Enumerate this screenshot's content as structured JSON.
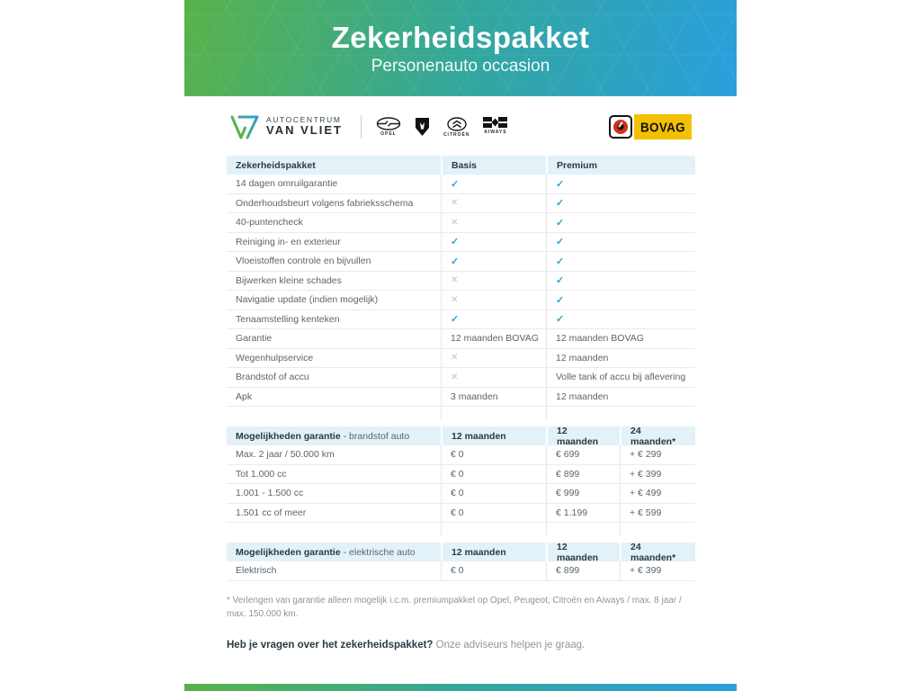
{
  "hero": {
    "title": "Zekerheidspakket",
    "subtitle": "Personenauto occasion"
  },
  "branding": {
    "dealer_top": "AUTOCENTRUM",
    "dealer_bottom": "VAN VLIET",
    "brands": [
      {
        "name": "opel",
        "label": "OPEL"
      },
      {
        "name": "peugeot",
        "label": ""
      },
      {
        "name": "citroen",
        "label": "CITROËN"
      },
      {
        "name": "aiways",
        "label": "AIWAYS"
      }
    ],
    "bovag_label": "BOVAG"
  },
  "icons": {
    "check": "✓",
    "cross": "✕"
  },
  "colors": {
    "green": "#58b24a",
    "blue": "#2a9fdd",
    "check": "#2aa2d8",
    "cross": "#bcc3c7",
    "header_bg": "#e3f1f9",
    "bovag_yellow": "#f2c103",
    "bovag_red": "#d3301d"
  },
  "package_table": {
    "headers": {
      "label": "Zekerheidspakket",
      "basis": "Basis",
      "premium": "Premium"
    },
    "rows": [
      {
        "label": "14 dagen omruilgarantie",
        "basis": "check",
        "premium": "check"
      },
      {
        "label": "Onderhoudsbeurt volgens fabrieksschema",
        "basis": "cross",
        "premium": "check"
      },
      {
        "label": "40-puntencheck",
        "basis": "cross",
        "premium": "check"
      },
      {
        "label": "Reiniging in- en exterieur",
        "basis": "check",
        "premium": "check"
      },
      {
        "label": "Vloeistoffen controle en bijvullen",
        "basis": "check",
        "premium": "check"
      },
      {
        "label": "Bijwerken kleine schades",
        "basis": "cross",
        "premium": "check"
      },
      {
        "label": "Navigatie update (indien mogelijk)",
        "basis": "cross",
        "premium": "check"
      },
      {
        "label": "Tenaamstelling kenteken",
        "basis": "check",
        "premium": "check"
      },
      {
        "label": "Garantie",
        "basis": "12 maanden BOVAG",
        "premium": "12 maanden BOVAG"
      },
      {
        "label": "Wegenhulpservice",
        "basis": "cross",
        "premium": "12 maanden"
      },
      {
        "label": "Brandstof of accu",
        "basis": "cross",
        "premium": "Volle tank of accu bij aflevering"
      },
      {
        "label": "Apk",
        "basis": "3 maanden",
        "premium": "12 maanden"
      }
    ]
  },
  "fuel_table": {
    "headers": {
      "label_bold": "Mogelijkheden garantie",
      "label_light": " - brandstof auto",
      "col1": "12 maanden",
      "col2": "12 maanden",
      "col3": "24 maanden*"
    },
    "rows": [
      {
        "label": "Max. 2 jaar / 50.000 km",
        "col1": "€ 0",
        "col2": "€ 699",
        "col3": "+ € 299"
      },
      {
        "label": "Tot 1.000 cc",
        "col1": "€ 0",
        "col2": "€ 899",
        "col3": "+ € 399"
      },
      {
        "label": "1.001 - 1.500 cc",
        "col1": "€ 0",
        "col2": "€ 999",
        "col3": "+ € 499"
      },
      {
        "label": "1.501 cc of meer",
        "col1": "€ 0",
        "col2": "€ 1.199",
        "col3": "+ € 599"
      }
    ]
  },
  "electric_table": {
    "headers": {
      "label_bold": "Mogelijkheden garantie",
      "label_light": " - elektrische auto",
      "col1": "12 maanden",
      "col2": "12 maanden",
      "col3": "24 maanden*"
    },
    "rows": [
      {
        "label": "Elektrisch",
        "col1": "€ 0",
        "col2": "€ 899",
        "col3": "+ € 399"
      }
    ]
  },
  "footnote": "* Verlengen van garantie alleen mogelijk i.c.m. premiumpakket op Opel, Peugeot, Citroën en Aiways / max. 8 jaar / max. 150.000 km.",
  "closing": {
    "question": "Heb je vragen over het zekerheidspakket?",
    "answer": " Onze adviseurs helpen je graag."
  }
}
